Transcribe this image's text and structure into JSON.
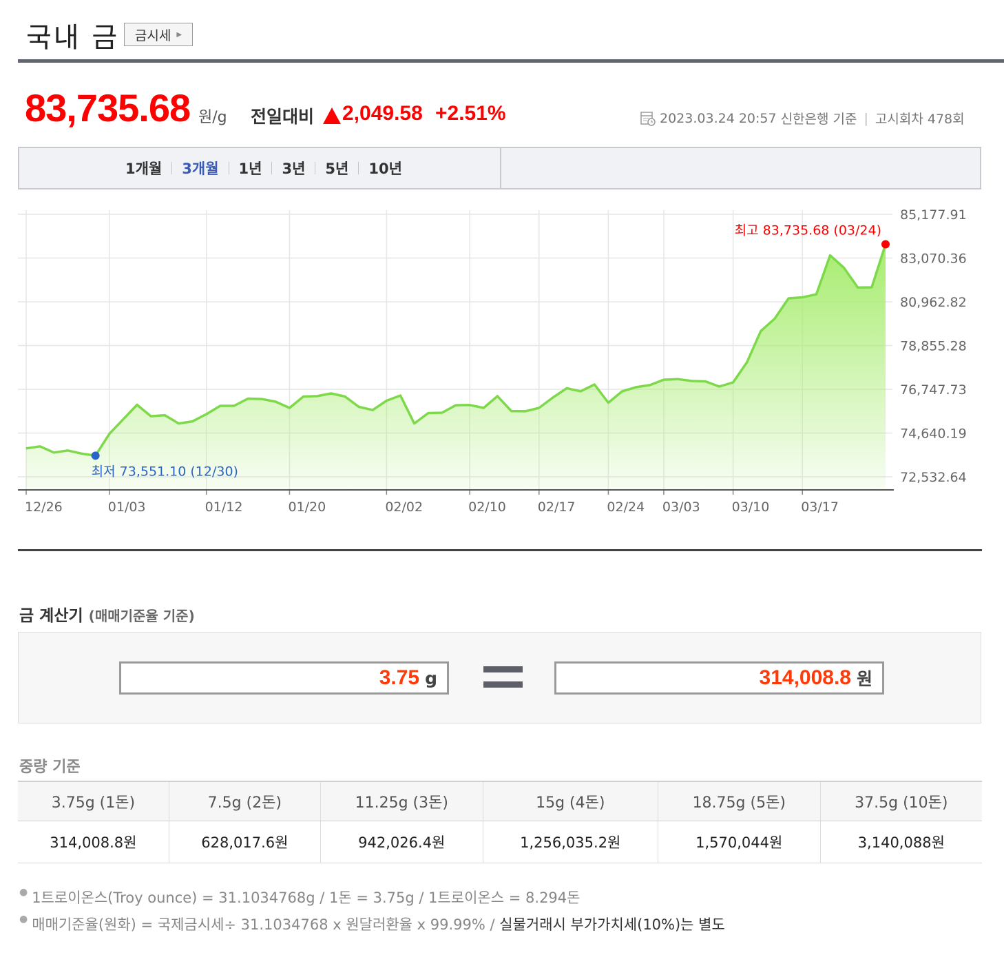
{
  "header": {
    "title": "국내 금",
    "quote_button": "금시세"
  },
  "price": {
    "value": "83,735.68",
    "unit": "원/g",
    "compare_label": "전일대비",
    "change": "2,049.58",
    "change_pct": "+2.51%"
  },
  "meta": {
    "datetime": "2023.03.24 20:57",
    "source": "신한은행 기준",
    "round": "고시회차 478회"
  },
  "periods": [
    "1개월",
    "3개월",
    "1년",
    "3년",
    "5년",
    "10년"
  ],
  "active_period": "3개월",
  "chart_data": {
    "type": "area",
    "ylim": [
      72532.64,
      85177.91
    ],
    "yticks": [
      "85,177.91",
      "83,070.36",
      "80,962.82",
      "78,855.28",
      "76,747.73",
      "74,640.19",
      "72,532.64"
    ],
    "ytick_values": [
      85177.91,
      83070.36,
      80962.82,
      78855.28,
      76747.73,
      74640.19,
      72532.64
    ],
    "xtick_labels": [
      "12/26",
      "01/03",
      "01/12",
      "01/20",
      "02/02",
      "02/10",
      "02/17",
      "02/24",
      "03/03",
      "03/10",
      "03/17"
    ],
    "xtick_index": [
      0,
      6,
      13,
      19,
      26,
      32,
      37,
      42,
      46,
      51,
      56
    ],
    "series": [
      {
        "values": [
          73900,
          74000,
          73700,
          73800,
          73650,
          73551.1,
          74600,
          75300,
          76000,
          75450,
          75500,
          75100,
          75200,
          75550,
          75950,
          75950,
          76300,
          76280,
          76150,
          75850,
          76400,
          76420,
          76550,
          76400,
          75900,
          75750,
          76200,
          76450,
          75100,
          75600,
          75620,
          75980,
          75990,
          75850,
          76420,
          75700,
          75690,
          75850,
          76350,
          76800,
          76650,
          76980,
          76100,
          76650,
          76850,
          76950,
          77210,
          77240,
          77150,
          77130,
          76880,
          77080,
          78050,
          79550,
          80150,
          81130,
          81180,
          81320,
          83200,
          82600,
          81650,
          81660,
          83735.68
        ]
      }
    ],
    "annotations": {
      "max": {
        "label": "최고",
        "value": "83,735.68",
        "date": "(03/24)",
        "index": 62,
        "color": "#ff0000"
      },
      "min": {
        "label": "최저",
        "value": "73,551.10",
        "date": "(12/30)",
        "index": 5,
        "color": "#2a63c9"
      }
    },
    "line_color": "#7dd94a",
    "fill_color": "#b8f08a",
    "grid": true
  },
  "calculator": {
    "title": "금 계산기",
    "subtitle": "(매매기준율 기준)",
    "weight_value": "3.75",
    "weight_unit": "g",
    "result_value": "314,008.8",
    "result_unit": "원"
  },
  "weight_table": {
    "title": "중량 기준",
    "headers": [
      "3.75g (1돈)",
      "7.5g (2돈)",
      "11.25g (3돈)",
      "15g (4돈)",
      "18.75g (5돈)",
      "37.5g (10돈)"
    ],
    "values": [
      "314,008.8원",
      "628,017.6원",
      "942,026.4원",
      "1,256,035.2원",
      "1,570,044원",
      "3,140,088원"
    ]
  },
  "notes": {
    "line1": "1트로이온스(Troy ounce) = 31.1034768g / 1돈 = 3.75g / 1트로이온스 = 8.294돈",
    "line2_a": "매매기준율(원화) = 국제금시세÷ 31.1034768 x 원달러환율 x 99.99% / ",
    "line2_b": "실물거래시 부가가치세(10%)는 별도"
  }
}
